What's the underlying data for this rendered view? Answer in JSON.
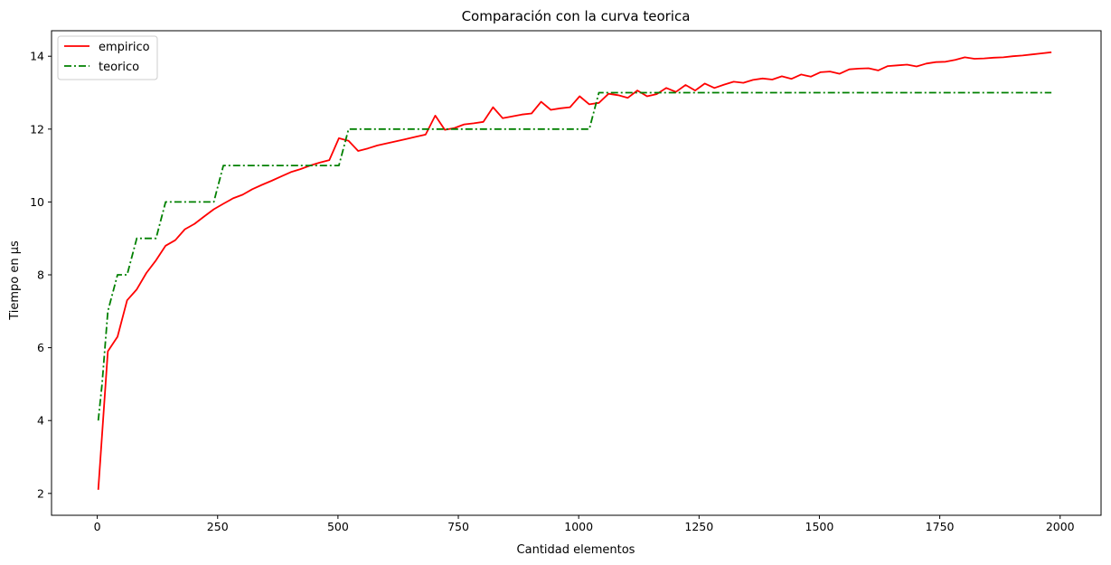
{
  "chart_data": {
    "type": "line",
    "title": "Comparación con la curva teorica",
    "xlabel": "Cantidad elementos",
    "ylabel": "Tiempo en µs",
    "xlim": [
      -95,
      2085
    ],
    "ylim": [
      1.4,
      14.7
    ],
    "xticks": [
      0,
      250,
      500,
      750,
      1000,
      1250,
      1500,
      1750,
      2000
    ],
    "yticks": [
      2,
      4,
      6,
      8,
      10,
      12,
      14
    ],
    "grid": false,
    "legend_position": "top-left",
    "series": [
      {
        "name": "empirico",
        "color": "#ff0000",
        "style": "solid",
        "x": [
          2,
          22,
          42,
          62,
          82,
          102,
          122,
          142,
          162,
          182,
          202,
          222,
          242,
          262,
          282,
          302,
          322,
          342,
          362,
          382,
          402,
          422,
          442,
          462,
          482,
          502,
          522,
          542,
          562,
          582,
          602,
          622,
          642,
          662,
          682,
          702,
          722,
          742,
          762,
          782,
          802,
          822,
          842,
          862,
          882,
          902,
          922,
          942,
          962,
          982,
          1002,
          1022,
          1042,
          1062,
          1082,
          1102,
          1122,
          1142,
          1162,
          1182,
          1202,
          1222,
          1242,
          1262,
          1282,
          1302,
          1322,
          1342,
          1362,
          1382,
          1402,
          1422,
          1442,
          1462,
          1482,
          1502,
          1522,
          1542,
          1562,
          1582,
          1602,
          1622,
          1642,
          1662,
          1682,
          1702,
          1722,
          1742,
          1762,
          1782,
          1802,
          1822,
          1842,
          1862,
          1882,
          1902,
          1922,
          1942,
          1962,
          1982
        ],
        "y": [
          2.1,
          5.9,
          6.3,
          7.3,
          7.6,
          8.05,
          8.4,
          8.8,
          8.95,
          9.25,
          9.4,
          9.6,
          9.8,
          9.95,
          10.1,
          10.2,
          10.35,
          10.47,
          10.58,
          10.7,
          10.82,
          10.9,
          11.0,
          11.08,
          11.15,
          11.75,
          11.68,
          11.4,
          11.47,
          11.55,
          11.61,
          11.67,
          11.73,
          11.79,
          11.85,
          12.37,
          11.98,
          12.03,
          12.13,
          12.16,
          12.2,
          12.6,
          12.3,
          12.35,
          12.4,
          12.43,
          12.75,
          12.53,
          12.57,
          12.6,
          12.9,
          12.68,
          12.72,
          12.97,
          12.93,
          12.86,
          13.06,
          12.9,
          12.96,
          13.13,
          13.02,
          13.21,
          13.06,
          13.25,
          13.13,
          13.22,
          13.3,
          13.27,
          13.35,
          13.39,
          13.36,
          13.45,
          13.38,
          13.5,
          13.44,
          13.56,
          13.58,
          13.52,
          13.64,
          13.66,
          13.67,
          13.61,
          13.73,
          13.75,
          13.77,
          13.72,
          13.8,
          13.84,
          13.85,
          13.9,
          13.97,
          13.93,
          13.94,
          13.96,
          13.97,
          14.0,
          14.02,
          14.05,
          14.08,
          14.11
        ]
      },
      {
        "name": "teorico",
        "color": "#008000",
        "style": "dashdot",
        "x": [
          2,
          10,
          22,
          42,
          62,
          82,
          102,
          122,
          142,
          162,
          182,
          202,
          222,
          242,
          262,
          282,
          302,
          322,
          342,
          362,
          382,
          402,
          422,
          442,
          462,
          482,
          502,
          522,
          542,
          562,
          582,
          602,
          622,
          642,
          662,
          682,
          702,
          722,
          742,
          762,
          782,
          802,
          822,
          842,
          862,
          882,
          902,
          922,
          942,
          962,
          982,
          1002,
          1022,
          1042,
          1062,
          1982
        ],
        "y": [
          4,
          5,
          7,
          8,
          8,
          9,
          9,
          9,
          10,
          10,
          10,
          10,
          10,
          10,
          11,
          11,
          11,
          11,
          11,
          11,
          11,
          11,
          11,
          11,
          11,
          11,
          11,
          12,
          12,
          12,
          12,
          12,
          12,
          12,
          12,
          12,
          12,
          12,
          12,
          12,
          12,
          12,
          12,
          12,
          12,
          12,
          12,
          12,
          12,
          12,
          12,
          12,
          12,
          13,
          13,
          13
        ]
      }
    ]
  }
}
